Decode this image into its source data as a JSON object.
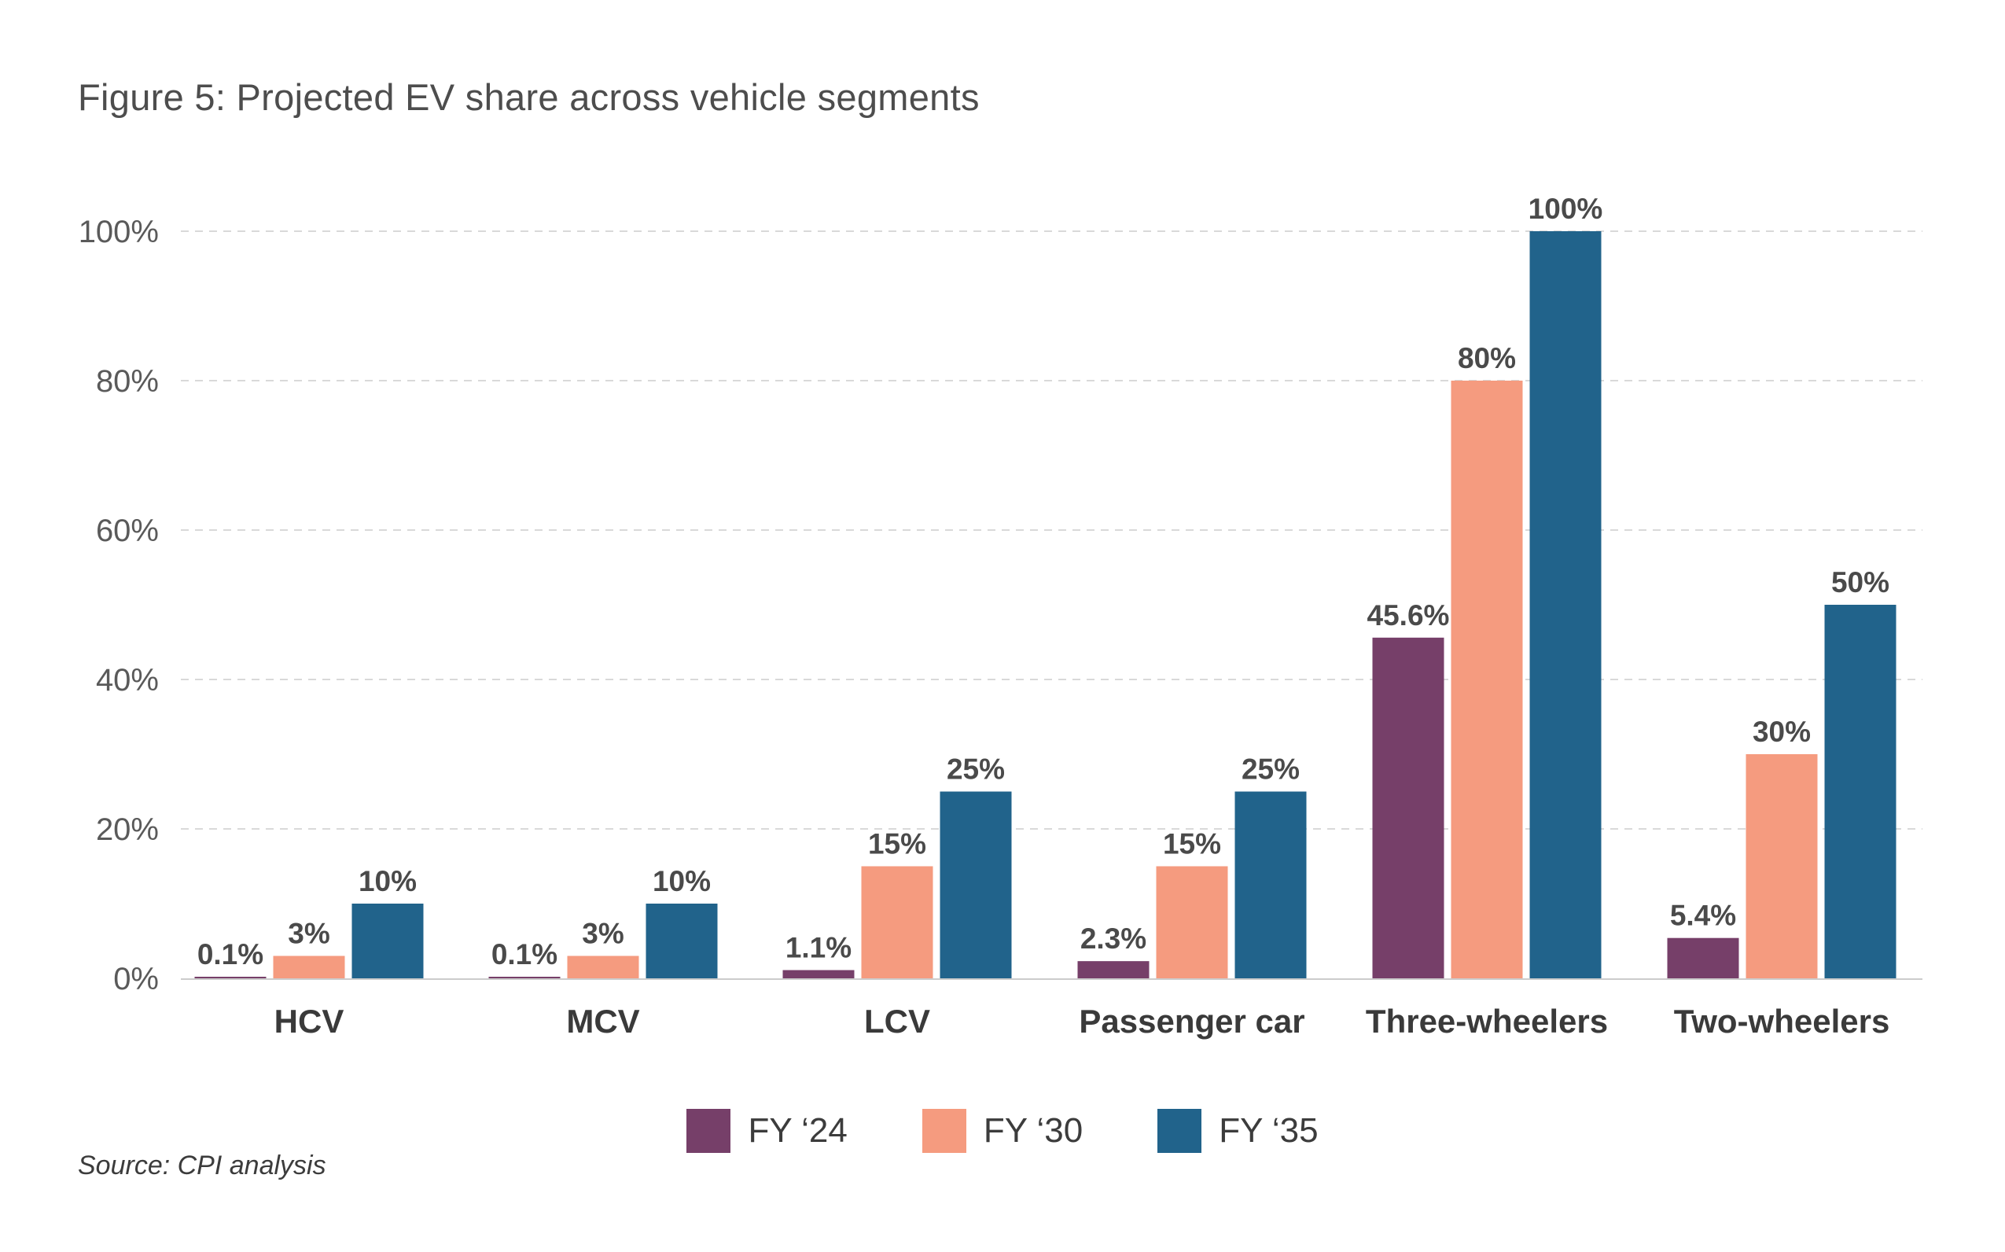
{
  "title": "Figure 5: Projected EV share across vehicle segments",
  "source": "Source: CPI analysis",
  "colors": {
    "fy24": "#763f69",
    "fy30": "#f59b7f",
    "fy35": "#21638b",
    "grid": "#d9d9d9",
    "axis": "#cccccc"
  },
  "chart_data": {
    "type": "bar",
    "title": "Figure 5: Projected EV share across vehicle segments",
    "xlabel": "",
    "ylabel": "",
    "ylim": [
      0,
      100
    ],
    "grid": "horizontal dashed",
    "legend_position": "bottom-center",
    "y_ticks": [
      "0%",
      "20%",
      "40%",
      "60%",
      "80%",
      "100%"
    ],
    "y_tick_values": [
      0,
      20,
      40,
      60,
      80,
      100
    ],
    "categories": [
      "HCV",
      "MCV",
      "LCV",
      "Passenger car",
      "Three-wheelers",
      "Two-wheelers"
    ],
    "series": [
      {
        "name": "FY ‘24",
        "color": "#763f69",
        "values": [
          0.1,
          0.1,
          1.1,
          2.3,
          45.6,
          5.4
        ],
        "labels": [
          "0.1%",
          "0.1%",
          "1.1%",
          "2.3%",
          "45.6%",
          "5.4%"
        ]
      },
      {
        "name": "FY ‘30",
        "color": "#f59b7f",
        "values": [
          3,
          3,
          15,
          15,
          80,
          30
        ],
        "labels": [
          "3%",
          "3%",
          "15%",
          "15%",
          "80%",
          "30%"
        ]
      },
      {
        "name": "FY ‘35",
        "color": "#21638b",
        "values": [
          10,
          10,
          25,
          25,
          100,
          50
        ],
        "labels": [
          "10%",
          "10%",
          "25%",
          "25%",
          "100%",
          "50%"
        ]
      }
    ]
  }
}
